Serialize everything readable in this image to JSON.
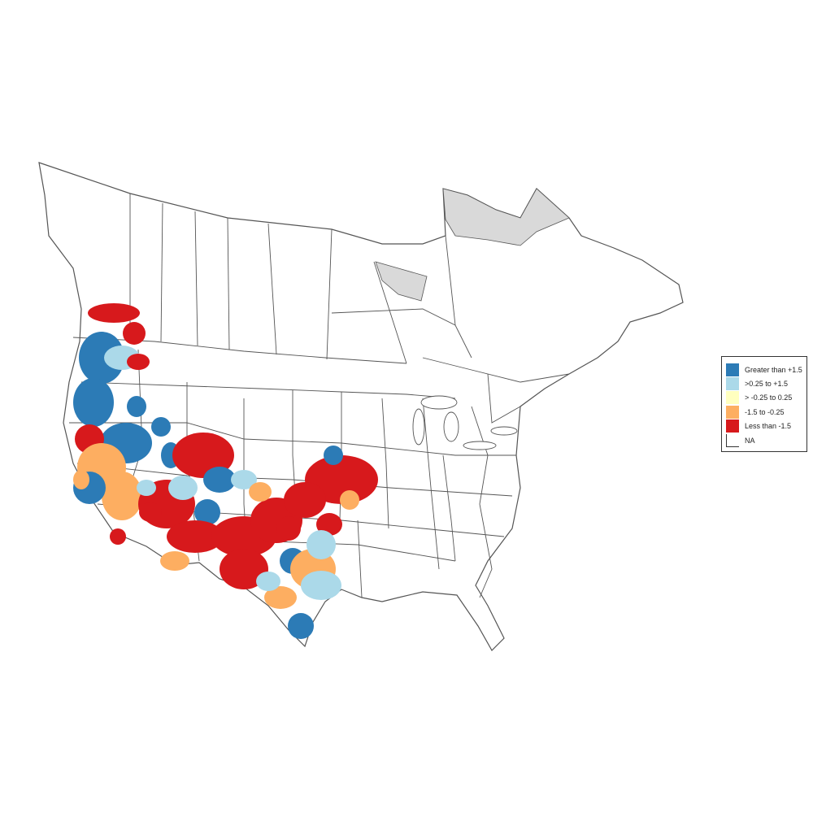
{
  "legend": {
    "items": [
      {
        "label": "Greater than +1.5",
        "color": "#2c7bb6"
      },
      {
        "label": ">0.25 to +1.5",
        "color": "#abd9e9"
      },
      {
        "label": "> -0.25 to 0.25",
        "color": "#ffffbf"
      },
      {
        "label": "-1.5 to -0.25",
        "color": "#fdae61"
      },
      {
        "label": "Less than -1.5",
        "color": "#d7191c"
      },
      {
        "label": "NA",
        "color": "#ffffff"
      }
    ]
  },
  "map": {
    "land_color": "#ffffff",
    "border_color": "#555555",
    "excluded_region_color": "#d9d9d9"
  }
}
